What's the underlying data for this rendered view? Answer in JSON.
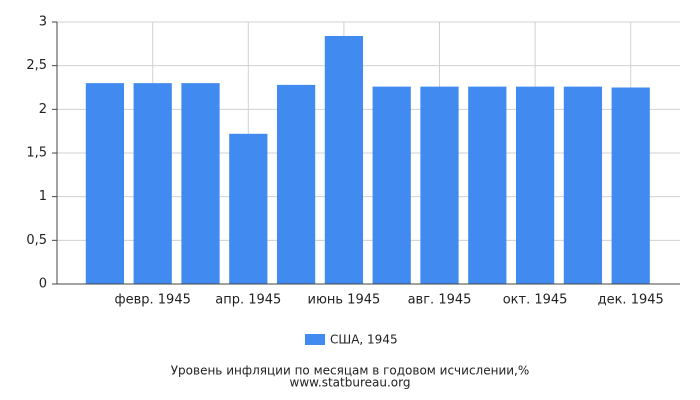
{
  "chart_data": {
    "type": "bar",
    "caption": "Уровень инфляции по месяцам в годовом исчислении,%",
    "source": "www.statbureau.org",
    "categories": [
      null,
      "февр. 1945",
      null,
      "апр. 1945",
      null,
      "июнь 1945",
      null,
      "авг. 1945",
      null,
      "окт. 1945",
      null,
      "дек. 1945"
    ],
    "series": [
      {
        "name": "США, 1945",
        "color": "#418bf0",
        "values": [
          2.3,
          2.3,
          2.3,
          1.72,
          2.28,
          2.84,
          2.26,
          2.26,
          2.26,
          2.26,
          2.26,
          2.25
        ]
      }
    ],
    "ylim": [
      0,
      3
    ],
    "yticks": [
      0,
      {
        "value": 0.5,
        "label": "0,5"
      },
      1,
      {
        "value": 1.5,
        "label": "1,5"
      },
      2,
      {
        "value": 2.5,
        "label": "2,5"
      },
      3
    ],
    "grid": true
  }
}
